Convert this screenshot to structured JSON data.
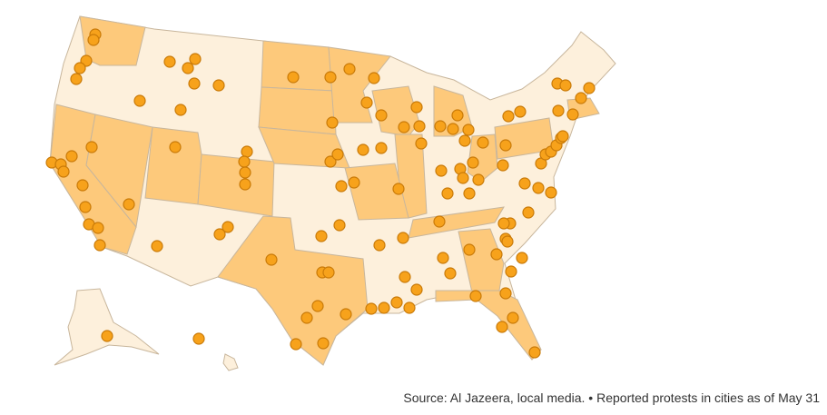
{
  "map": {
    "source": "Source: Al Jazeera, local media. • Reported protests in cities as of May 31"
  }
}
